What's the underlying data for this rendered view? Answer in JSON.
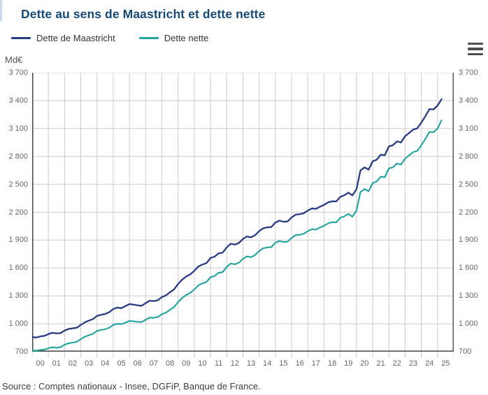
{
  "header": {
    "title": "Dette au sens de Maastricht et dette nette"
  },
  "legend": {
    "items": [
      {
        "label": "Dette de Maastricht",
        "color": "#283c85"
      },
      {
        "label": "Dette nette",
        "color": "#1fa39c"
      }
    ]
  },
  "unit_label": "Md€",
  "menu_icon_name": "chart-export-menu",
  "source": "Source : Comptes nationaux - Insee, DGFiP, Banque de France.",
  "colors": {
    "title": "#174a77",
    "axis": "#454545",
    "right_axis": "#5a5a5a",
    "grid": "#cccccc",
    "tick_text": "#666666"
  },
  "chart_data": {
    "type": "line",
    "title": "Dette au sens de Maastricht et dette nette",
    "ylabel": "Md€",
    "xlabel": "",
    "grid": true,
    "legend_position": "top-left",
    "xlim": [
      2000,
      2026
    ],
    "ylim": [
      700,
      3700
    ],
    "x_start": 2000,
    "x_step_years": 0.25,
    "x_tick_labels": [
      "00",
      "01",
      "02",
      "03",
      "04",
      "05",
      "06",
      "07",
      "08",
      "09",
      "10",
      "11",
      "12",
      "13",
      "14",
      "15",
      "16",
      "17",
      "18",
      "19",
      "20",
      "21",
      "22",
      "23",
      "24",
      "25"
    ],
    "y_ticks": [
      700,
      1000,
      1300,
      1600,
      1900,
      2200,
      2500,
      2800,
      3100,
      3400,
      3700
    ],
    "y_tick_labels": [
      "700",
      "1 000",
      "1 300",
      "1 600",
      "1 900",
      "2 200",
      "2 500",
      "2 800",
      "3 100",
      "3 400",
      "3 700"
    ],
    "series": [
      {
        "name": "Dette de Maastricht",
        "color": "#283c85",
        "values": [
          858,
          852,
          864,
          870,
          889,
          903,
          896,
          899,
          927,
          944,
          951,
          957,
          988,
          1015,
          1034,
          1050,
          1084,
          1096,
          1105,
          1124,
          1159,
          1174,
          1168,
          1190,
          1212,
          1205,
          1198,
          1194,
          1222,
          1248,
          1244,
          1253,
          1287,
          1305,
          1338,
          1370,
          1428,
          1474,
          1508,
          1531,
          1570,
          1616,
          1637,
          1653,
          1707,
          1722,
          1757,
          1765,
          1822,
          1861,
          1851,
          1869,
          1912,
          1939,
          1929,
          1953,
          1997,
          2027,
          2037,
          2040,
          2089,
          2109,
          2097,
          2101,
          2143,
          2174,
          2178,
          2189,
          2218,
          2240,
          2236,
          2259,
          2278,
          2305,
          2317,
          2315,
          2365,
          2382,
          2410,
          2380,
          2446,
          2649,
          2682,
          2657,
          2747,
          2765,
          2817,
          2813,
          2907,
          2921,
          2962,
          2950,
          3017,
          3052,
          3088,
          3102,
          3163,
          3232,
          3308,
          3305,
          3346,
          3416
        ]
      },
      {
        "name": "Dette nette",
        "color": "#1fa39c",
        "values": [
          713,
          710,
          718,
          722,
          737,
          748,
          742,
          748,
          775,
          790,
          798,
          805,
          835,
          860,
          877,
          892,
          923,
          934,
          941,
          957,
          988,
          1000,
          996,
          1012,
          1030,
          1026,
          1020,
          1018,
          1043,
          1066,
          1064,
          1072,
          1103,
          1119,
          1150,
          1178,
          1233,
          1277,
          1310,
          1332,
          1369,
          1413,
          1433,
          1449,
          1501,
          1514,
          1548,
          1556,
          1611,
          1648,
          1639,
          1657,
          1699,
          1725,
          1716,
          1740,
          1783,
          1812,
          1821,
          1824,
          1872,
          1891,
          1879,
          1883,
          1924,
          1954,
          1957,
          1968,
          1996,
          2017,
          2013,
          2036,
          2054,
          2080,
          2092,
          2090,
          2139,
          2155,
          2182,
          2152,
          2216,
          2418,
          2450,
          2425,
          2513,
          2530,
          2581,
          2577,
          2670,
          2683,
          2723,
          2711,
          2777,
          2811,
          2846,
          2860,
          2920,
          2988,
          3063,
          3060,
          3100,
          3188
        ]
      }
    ]
  }
}
